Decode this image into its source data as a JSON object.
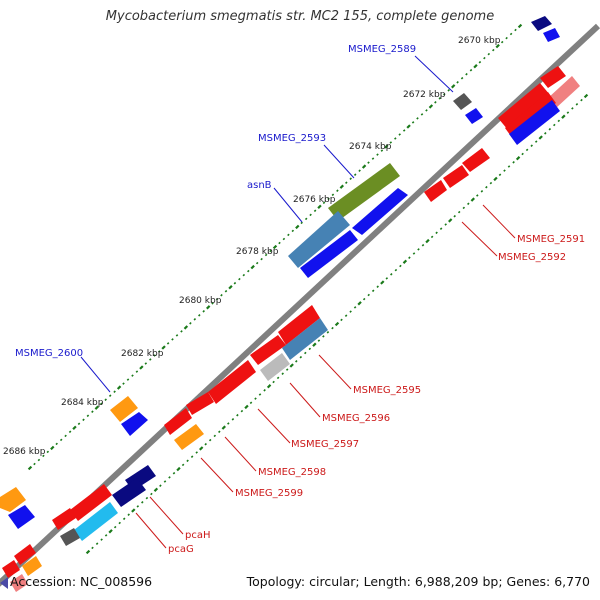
{
  "title": "Mycobacterium smegmatis str. MC2 155, complete genome",
  "accession_label": "Accession:",
  "accession": "NC_008596",
  "footer_right": "Topology: circular; Length: 6,988,209 bp; Genes: 6,770",
  "ticks": [
    "2670 kbp",
    "2672 kbp",
    "2674 kbp",
    "2676 kbp",
    "2678 kbp",
    "2680 kbp",
    "2682 kbp",
    "2684 kbp",
    "2686 kbp"
  ],
  "labels": {
    "msmeg_2589": "MSMEG_2589",
    "msmeg_2593": "MSMEG_2593",
    "asnb": "asnB",
    "msmeg_2600": "MSMEG_2600",
    "msmeg_2591": "MSMEG_2591",
    "msmeg_2592": "MSMEG_2592",
    "msmeg_2595": "MSMEG_2595",
    "msmeg_2596": "MSMEG_2596",
    "msmeg_2597": "MSMEG_2597",
    "msmeg_2598": "MSMEG_2598",
    "msmeg_2599": "MSMEG_2599",
    "pcah": "pcaH",
    "pcag": "pcaG"
  },
  "colors": {
    "backbone": "#808080",
    "tick": "#1a7a1a",
    "forward_label": "#1a1acc",
    "reverse_label": "#cc1a1a",
    "red_gene": "#ee1111",
    "blue_gene": "#1111ee",
    "orange_gene": "#ff9911",
    "steel_gene": "#4682b4",
    "olive_gene": "#6b8e23",
    "navy_gene": "#0a0a80",
    "cyan_gene": "#22bbee",
    "gray_gene": "#555555",
    "light_gray_gene": "#bbbbbb",
    "pink_gene": "#f08080"
  }
}
